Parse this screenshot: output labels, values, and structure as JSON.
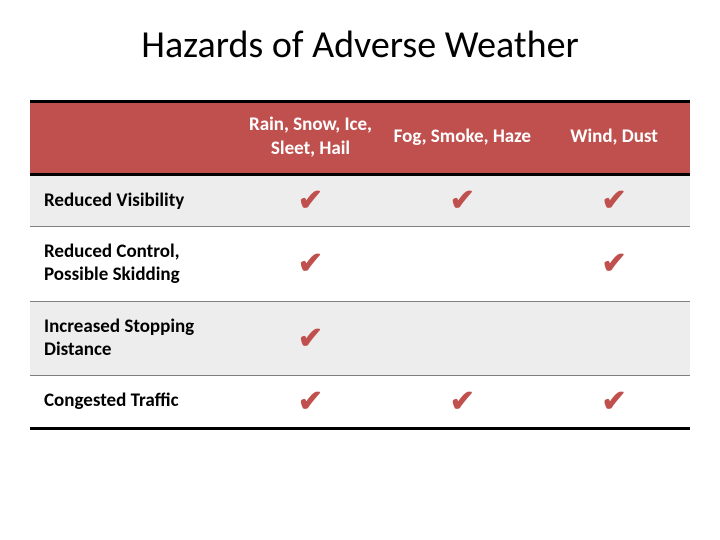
{
  "title": "Hazards of Adverse Weather",
  "colors": {
    "header_bg": "#c0504d",
    "header_text": "#ffffff",
    "checkmark": "#c0504d",
    "row_odd_bg": "#ededed",
    "row_even_bg": "#ffffff",
    "border_heavy": "#000000",
    "border_light": "#7f7f7f",
    "body_text": "#000000"
  },
  "typography": {
    "title_fontsize": 38,
    "header_fontsize": 19,
    "rowlabel_fontsize": 19,
    "check_fontsize": 30,
    "font_family": "Calibri"
  },
  "table": {
    "type": "table",
    "column_widths_pct": [
      31,
      23,
      23,
      23
    ],
    "columns": [
      "Rain, Snow, Ice, Sleet, Hail",
      "Fog, Smoke, Haze",
      "Wind, Dust"
    ],
    "rows": [
      {
        "label": "Reduced Visibility",
        "checks": [
          true,
          true,
          true
        ]
      },
      {
        "label": "Reduced Control, Possible Skidding",
        "checks": [
          true,
          false,
          true
        ]
      },
      {
        "label": "Increased Stopping Distance",
        "checks": [
          true,
          false,
          false
        ]
      },
      {
        "label": "Congested Traffic",
        "checks": [
          true,
          true,
          true
        ]
      }
    ],
    "check_glyph": "✔"
  }
}
